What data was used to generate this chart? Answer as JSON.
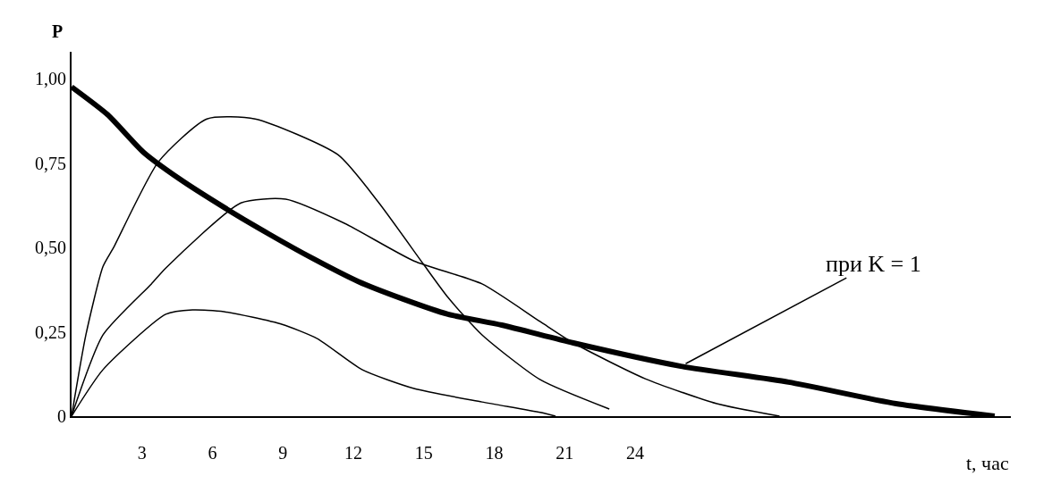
{
  "chart_data": {
    "type": "line",
    "xlabel": "t, час",
    "ylabel": "P",
    "xlim": [
      0,
      40
    ],
    "ylim": [
      0,
      1.08
    ],
    "xticks": [
      3,
      6,
      9,
      12,
      15,
      18,
      21,
      24
    ],
    "yticks": [
      {
        "value": 0,
        "label": "0"
      },
      {
        "value": 0.25,
        "label": "0,25"
      },
      {
        "value": 0.5,
        "label": "0,50"
      },
      {
        "value": 0.75,
        "label": "0,75"
      },
      {
        "value": 1,
        "label": "1,00"
      }
    ],
    "marker": "none",
    "line_style": "solid",
    "series": [
      {
        "color": "#000000",
        "x": [
          0,
          1.53,
          3.05,
          4.58,
          6.49,
          8.4,
          10.31,
          12.21,
          14.12,
          16.03,
          18.32,
          21.37,
          25.95,
          30.53,
          35.11,
          39.31
        ],
        "values": [
          0.976,
          0.894,
          0.783,
          0.704,
          0.619,
          0.54,
          0.466,
          0.399,
          0.347,
          0.302,
          0.27,
          0.217,
          0.148,
          0.101,
          0.037,
          0
        ]
      },
      {
        "color": "#000000",
        "x": [
          0,
          0.61,
          1.34,
          1.79,
          3.7,
          5.76,
          7.82,
          11.34,
          13.09,
          14.99,
          16.03,
          17.48,
          19.96,
          22.9
        ],
        "values": [
          0,
          0.241,
          0.444,
          0.5,
          0.754,
          0.881,
          0.881,
          0.775,
          0.632,
          0.45,
          0.352,
          0.241,
          0.108,
          0.021
        ]
      },
      {
        "color": "#000000",
        "x": [
          0,
          1.34,
          3.4,
          4.01,
          7.21,
          9.12,
          11.64,
          14.58,
          17.48,
          19.96,
          21.37,
          24.43,
          27.48,
          30.15
        ],
        "values": [
          0,
          0.241,
          0.392,
          0.439,
          0.632,
          0.643,
          0.571,
          0.46,
          0.392,
          0.28,
          0.217,
          0.111,
          0.037,
          0
        ]
      },
      {
        "color": "#000000",
        "x": [
          0,
          1.34,
          4.01,
          5.15,
          6.49,
          8.97,
          10.46,
          12.37,
          14.58,
          17.48,
          19.96,
          20.61
        ],
        "values": [
          0,
          0.138,
          0.302,
          0.315,
          0.31,
          0.272,
          0.23,
          0.138,
          0.082,
          0.042,
          0.011,
          0
        ]
      }
    ],
    "annotations": [
      {
        "text": "при K = 1",
        "x": 25.95,
        "y": 0.148
      }
    ]
  }
}
